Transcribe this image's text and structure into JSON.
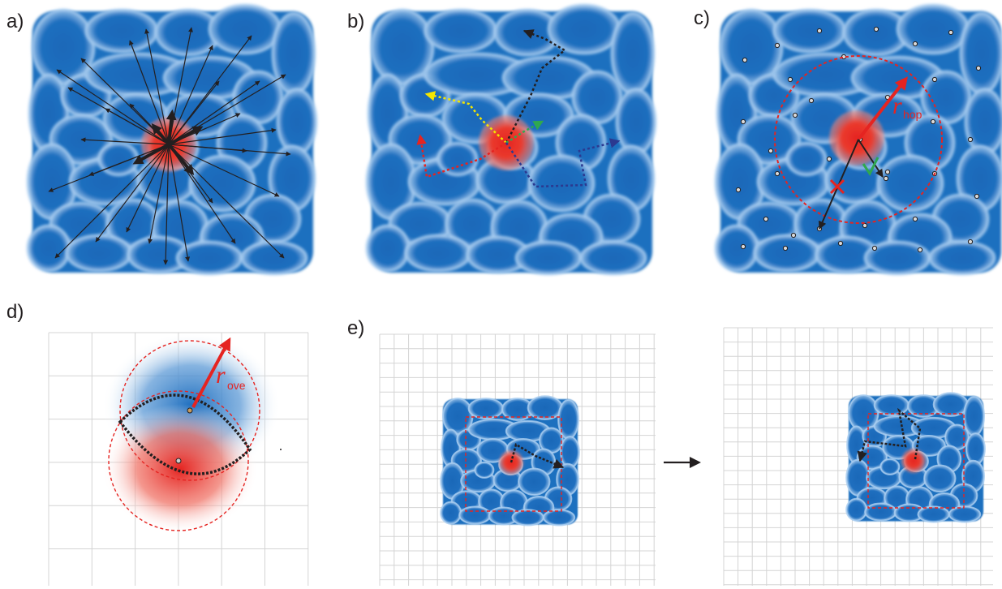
{
  "panels": {
    "a": {
      "label": "a)"
    },
    "b": {
      "label": "b)"
    },
    "c": {
      "label": "c)",
      "radius_symbol": "r",
      "radius_subscript": "hop"
    },
    "d": {
      "label": "d)",
      "radius_symbol": "r",
      "radius_subscript": "ove"
    },
    "e": {
      "label": "e)"
    }
  },
  "colors": {
    "cell_blue": "#1f6fbf",
    "cell_edge": "#9cc3ea",
    "particle_red": "#e52421",
    "arrow_black": "#231f20",
    "path_yellow": "#f4e600",
    "path_green": "#2fa84f",
    "path_navy": "#2b3990",
    "grid_gray": "#cfcfcf"
  }
}
